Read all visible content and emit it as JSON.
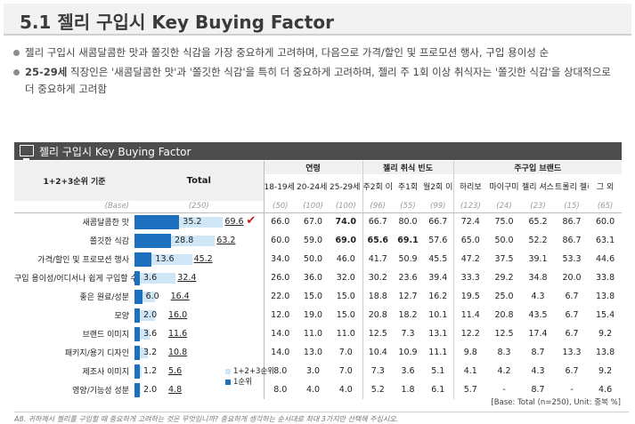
{
  "title": "5.1 젤리 구입시 Key Buying Factor",
  "bullets": [
    {
      "bold": "",
      "text": "젤리 구입시 새콤달콤한 맛과 쫄깃한 식감을 가장 중요하게 고려하며, 다음으로 가격/할인 및 프로모션 행사, 구입 용이성 순"
    },
    {
      "bold": "25-29세",
      "text": " 직장인은 '새콤달콤한 맛'과 '쫄깃한 식감'을 특히 더 중요하게 고려하며, 젤리 주 1회 이상 취식자는 '쫄깃한 식감'을 상대적으로 더 중요하게 고려함"
    }
  ],
  "section_title": "젤리 구입시 Key Buying Factor",
  "table": {
    "criteria_label": "1+2+3순위 기준",
    "total_label": "Total",
    "groups": [
      {
        "label": "연령",
        "columns": [
          "18-19세 여고생",
          "20-24세 여대생",
          "25-29세 직장인"
        ]
      },
      {
        "label": "젤리 취식 빈도",
        "columns": [
          "주2회 이상",
          "주1회",
          "월2회 이상"
        ]
      },
      {
        "label": "주구입 브랜드",
        "columns": [
          "하리보",
          "마이구미",
          "젤리 셔스",
          "트롤리 젤리",
          "그 외"
        ]
      }
    ],
    "base": {
      "label": "(Base)",
      "total": "(250)",
      "values": [
        "(50)",
        "(100)",
        "(100)",
        "(96)",
        "(55)",
        "(99)",
        "(123)",
        "(24)",
        "(23)",
        "(15)",
        "(65)"
      ]
    },
    "rows": [
      {
        "label": "새콤달콤한 맛",
        "first": "35.2",
        "top3": "69.6",
        "check": true,
        "values": [
          "66.0",
          "67.0",
          "74.0",
          "66.7",
          "80.0",
          "66.7",
          "72.4",
          "75.0",
          "65.2",
          "86.7",
          "60.0"
        ],
        "highlight": [
          2
        ]
      },
      {
        "label": "쫄깃한 식감",
        "first": "28.8",
        "top3": "63.2",
        "check": false,
        "values": [
          "60.0",
          "59.0",
          "69.0",
          "65.6",
          "69.1",
          "57.6",
          "65.0",
          "50.0",
          "52.2",
          "86.7",
          "63.1"
        ],
        "highlight": [
          2,
          3,
          4
        ]
      },
      {
        "label": "가격/할인 및 프로모션 행사",
        "first": "13.6",
        "top3": "45.2",
        "check": false,
        "values": [
          "34.0",
          "50.0",
          "46.0",
          "41.7",
          "50.9",
          "45.5",
          "47.2",
          "37.5",
          "39.1",
          "53.3",
          "44.6"
        ],
        "highlight": []
      },
      {
        "label": "구입 용이성/어디서나 쉽게 구입할 수 있는",
        "first": "3.6",
        "top3": "32.4",
        "check": false,
        "values": [
          "26.0",
          "36.0",
          "32.0",
          "30.2",
          "23.6",
          "39.4",
          "33.3",
          "29.2",
          "34.8",
          "20.0",
          "33.8"
        ],
        "highlight": []
      },
      {
        "label": "좋은 원료/성분",
        "first": "6.0",
        "top3": "16.4",
        "check": false,
        "values": [
          "22.0",
          "15.0",
          "15.0",
          "18.8",
          "12.7",
          "16.2",
          "19.5",
          "25.0",
          "4.3",
          "6.7",
          "13.8"
        ],
        "highlight": []
      },
      {
        "label": "모양",
        "first": "2.0",
        "top3": "16.0",
        "check": false,
        "values": [
          "12.0",
          "19.0",
          "15.0",
          "20.8",
          "18.2",
          "10.1",
          "11.4",
          "20.8",
          "43.5",
          "6.7",
          "15.4"
        ],
        "highlight": []
      },
      {
        "label": "브랜드 이미지",
        "first": "3.6",
        "top3": "11.6",
        "check": false,
        "values": [
          "14.0",
          "11.0",
          "11.0",
          "12.5",
          "7.3",
          "13.1",
          "12.2",
          "12.5",
          "17.4",
          "6.7",
          "9.2"
        ],
        "highlight": []
      },
      {
        "label": "패키지/용기 디자인",
        "first": "3.2",
        "top3": "10.8",
        "check": false,
        "values": [
          "14.0",
          "13.0",
          "7.0",
          "10.4",
          "10.9",
          "11.1",
          "9.8",
          "8.3",
          "8.7",
          "13.3",
          "13.8"
        ],
        "highlight": []
      },
      {
        "label": "제조사 이미지",
        "first": "1.2",
        "top3": "5.6",
        "check": false,
        "values": [
          "8.0",
          "3.0",
          "7.0",
          "7.3",
          "3.6",
          "5.1",
          "4.1",
          "4.2",
          "4.3",
          "6.7",
          "9.2"
        ],
        "highlight": []
      },
      {
        "label": "영양/기능성 성분",
        "first": "2.0",
        "top3": "4.8",
        "check": false,
        "values": [
          "8.0",
          "4.0",
          "4.0",
          "5.2",
          "1.8",
          "6.1",
          "5.7",
          "-",
          "8.7",
          "-",
          "4.6"
        ],
        "highlight": []
      }
    ]
  },
  "legend": [
    "1+2+3순위",
    "1순위"
  ],
  "base_note": "[Base: Total (n=250), Unit: 중복 %]",
  "footnote": "A8. 귀하께서 젤리를 구입할 때 중요하게 고려하는 것은 무엇입니까? 중요하게 생각하는 순서대로 최대 3가지만 선택해 주십시오.",
  "colors": {
    "first_bar": "#1f6fbf",
    "top3_bar": "#cfe6f7",
    "highlight": "#e0201b",
    "header_bg": "#4d4d4d"
  }
}
